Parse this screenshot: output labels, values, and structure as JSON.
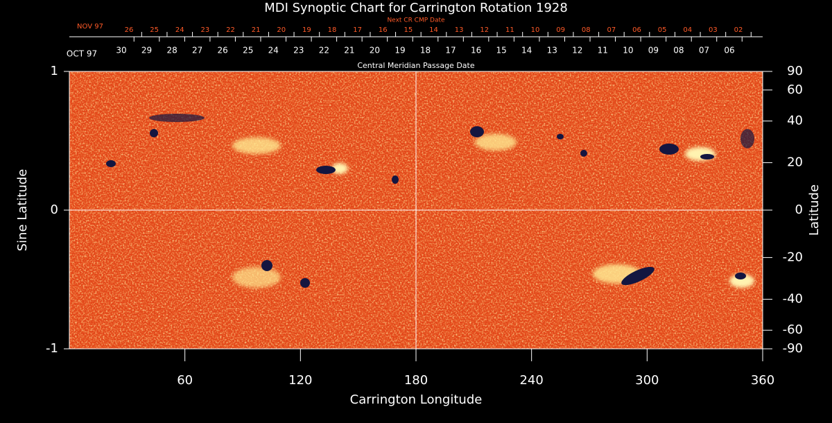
{
  "chart_data": {
    "type": "synoptic-map",
    "title": "MDI Synoptic Chart for Carrington Rotation 1928",
    "xlabel": "Carrington Longitude",
    "ylabel": "Sine Latitude",
    "y2label": "Latitude",
    "xlim": [
      0,
      360
    ],
    "xticks": [
      60,
      120,
      180,
      240,
      300,
      360
    ],
    "ylim": [
      -1,
      1
    ],
    "yticks": [
      -1,
      0,
      1
    ],
    "y2lim": [
      -90,
      90
    ],
    "y2scale": "sine",
    "y2ticks": [
      90,
      60,
      40,
      20,
      0,
      -20,
      -40,
      -60,
      -90
    ],
    "crosshair": {
      "x": [
        180
      ],
      "y": [
        0
      ]
    },
    "top_axes": [
      {
        "label": "Next CR CMP Date",
        "start": "NOV 97",
        "color": "#ff5a28",
        "dates": [
          "26",
          "25",
          "24",
          "23",
          "22",
          "21",
          "20",
          "19",
          "18",
          "17",
          "16",
          "15",
          "14",
          "13",
          "12",
          "11",
          "10",
          "09",
          "08",
          "07",
          "06",
          "05",
          "04",
          "03",
          "02"
        ]
      },
      {
        "label": "Central Meridian Passage Date",
        "start": "OCT 97",
        "color": "#ffffff",
        "dates": [
          "30",
          "29",
          "28",
          "27",
          "26",
          "25",
          "24",
          "23",
          "22",
          "21",
          "20",
          "19",
          "18",
          "17",
          "16",
          "15",
          "14",
          "13",
          "12",
          "11",
          "10",
          "09",
          "08",
          "07",
          "06"
        ]
      }
    ]
  }
}
